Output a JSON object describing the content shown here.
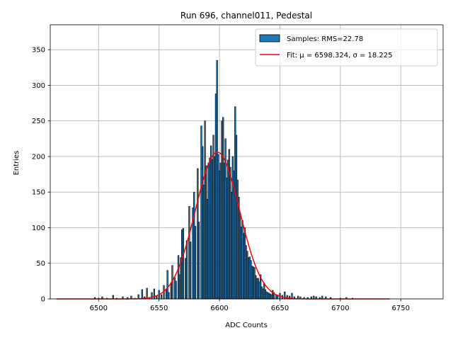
{
  "chart_data": {
    "type": "bar",
    "title": "Run 696, channel011, Pedestal",
    "xlabel": "ADC Counts",
    "ylabel": "Entries",
    "xlim": [
      6460,
      6785
    ],
    "ylim": [
      0,
      385
    ],
    "xticks": [
      6500,
      6550,
      6600,
      6650,
      6700,
      6750
    ],
    "yticks": [
      0,
      50,
      100,
      150,
      200,
      250,
      300,
      350
    ],
    "grid": true,
    "legend_position": "top-right",
    "bar_color": "#1f77b4",
    "fit_color": "#ff0000",
    "legend": {
      "samples": "Samples: RMS=22.78",
      "fit": "Fit: μ = 6598.324, σ = 18.225"
    },
    "fit": {
      "mu": 6598.324,
      "sigma": 18.225,
      "amplitude": 206,
      "x_range": [
        6465,
        6741
      ]
    },
    "series": [
      {
        "name": "Samples: RMS=22.78",
        "bins": [
          [
            6497,
            2
          ],
          [
            6500,
            1
          ],
          [
            6503,
            3
          ],
          [
            6507,
            1
          ],
          [
            6512,
            5
          ],
          [
            6515,
            1
          ],
          [
            6520,
            3
          ],
          [
            6524,
            2
          ],
          [
            6527,
            4
          ],
          [
            6530,
            1
          ],
          [
            6533,
            6
          ],
          [
            6536,
            13
          ],
          [
            6538,
            3
          ],
          [
            6540,
            15
          ],
          [
            6542,
            2
          ],
          [
            6544,
            9
          ],
          [
            6546,
            14
          ],
          [
            6548,
            4
          ],
          [
            6550,
            12
          ],
          [
            6552,
            6
          ],
          [
            6554,
            19
          ],
          [
            6556,
            14
          ],
          [
            6557,
            40
          ],
          [
            6558,
            9
          ],
          [
            6560,
            22
          ],
          [
            6561,
            47
          ],
          [
            6563,
            30
          ],
          [
            6564,
            25
          ],
          [
            6566,
            61
          ],
          [
            6567,
            34
          ],
          [
            6568,
            58
          ],
          [
            6569,
            97
          ],
          [
            6570,
            99
          ],
          [
            6572,
            57
          ],
          [
            6573,
            82
          ],
          [
            6575,
            130
          ],
          [
            6576,
            80
          ],
          [
            6578,
            128
          ],
          [
            6579,
            150
          ],
          [
            6580,
            102
          ],
          [
            6582,
            183
          ],
          [
            6583,
            108
          ],
          [
            6585,
            243
          ],
          [
            6586,
            214
          ],
          [
            6587,
            160
          ],
          [
            6588,
            250
          ],
          [
            6589,
            187
          ],
          [
            6590,
            140
          ],
          [
            6591,
            191
          ],
          [
            6592,
            198
          ],
          [
            6593,
            215
          ],
          [
            6594,
            196
          ],
          [
            6595,
            230
          ],
          [
            6596,
            200
          ],
          [
            6597,
            288
          ],
          [
            6598,
            335
          ],
          [
            6599,
            203
          ],
          [
            6600,
            180
          ],
          [
            6601,
            191
          ],
          [
            6602,
            250
          ],
          [
            6603,
            255
          ],
          [
            6604,
            191
          ],
          [
            6605,
            225
          ],
          [
            6606,
            170
          ],
          [
            6607,
            195
          ],
          [
            6608,
            210
          ],
          [
            6609,
            185
          ],
          [
            6610,
            150
          ],
          [
            6611,
            200
          ],
          [
            6612,
            180
          ],
          [
            6613,
            270
          ],
          [
            6614,
            230
          ],
          [
            6615,
            167
          ],
          [
            6616,
            143
          ],
          [
            6617,
            120
          ],
          [
            6618,
            101
          ],
          [
            6619,
            110
          ],
          [
            6620,
            92
          ],
          [
            6621,
            100
          ],
          [
            6622,
            75
          ],
          [
            6623,
            67
          ],
          [
            6624,
            58
          ],
          [
            6625,
            59
          ],
          [
            6626,
            54
          ],
          [
            6627,
            46
          ],
          [
            6628,
            45
          ],
          [
            6629,
            44
          ],
          [
            6630,
            33
          ],
          [
            6631,
            29
          ],
          [
            6632,
            29
          ],
          [
            6633,
            24
          ],
          [
            6634,
            34
          ],
          [
            6635,
            17
          ],
          [
            6636,
            14
          ],
          [
            6637,
            22
          ],
          [
            6638,
            13
          ],
          [
            6639,
            10
          ],
          [
            6640,
            9
          ],
          [
            6641,
            8
          ],
          [
            6642,
            7
          ],
          [
            6643,
            6
          ],
          [
            6644,
            12
          ],
          [
            6645,
            9
          ],
          [
            6647,
            6
          ],
          [
            6648,
            5
          ],
          [
            6650,
            8
          ],
          [
            6652,
            5
          ],
          [
            6654,
            10
          ],
          [
            6656,
            5
          ],
          [
            6658,
            4
          ],
          [
            6660,
            8
          ],
          [
            6662,
            3
          ],
          [
            6665,
            4
          ],
          [
            6667,
            3
          ],
          [
            6670,
            2
          ],
          [
            6673,
            2
          ],
          [
            6676,
            3
          ],
          [
            6678,
            4
          ],
          [
            6680,
            3
          ],
          [
            6683,
            2
          ],
          [
            6685,
            4
          ],
          [
            6688,
            3
          ],
          [
            6692,
            2
          ],
          [
            6700,
            1
          ],
          [
            6705,
            2
          ],
          [
            6710,
            1
          ]
        ]
      }
    ]
  }
}
